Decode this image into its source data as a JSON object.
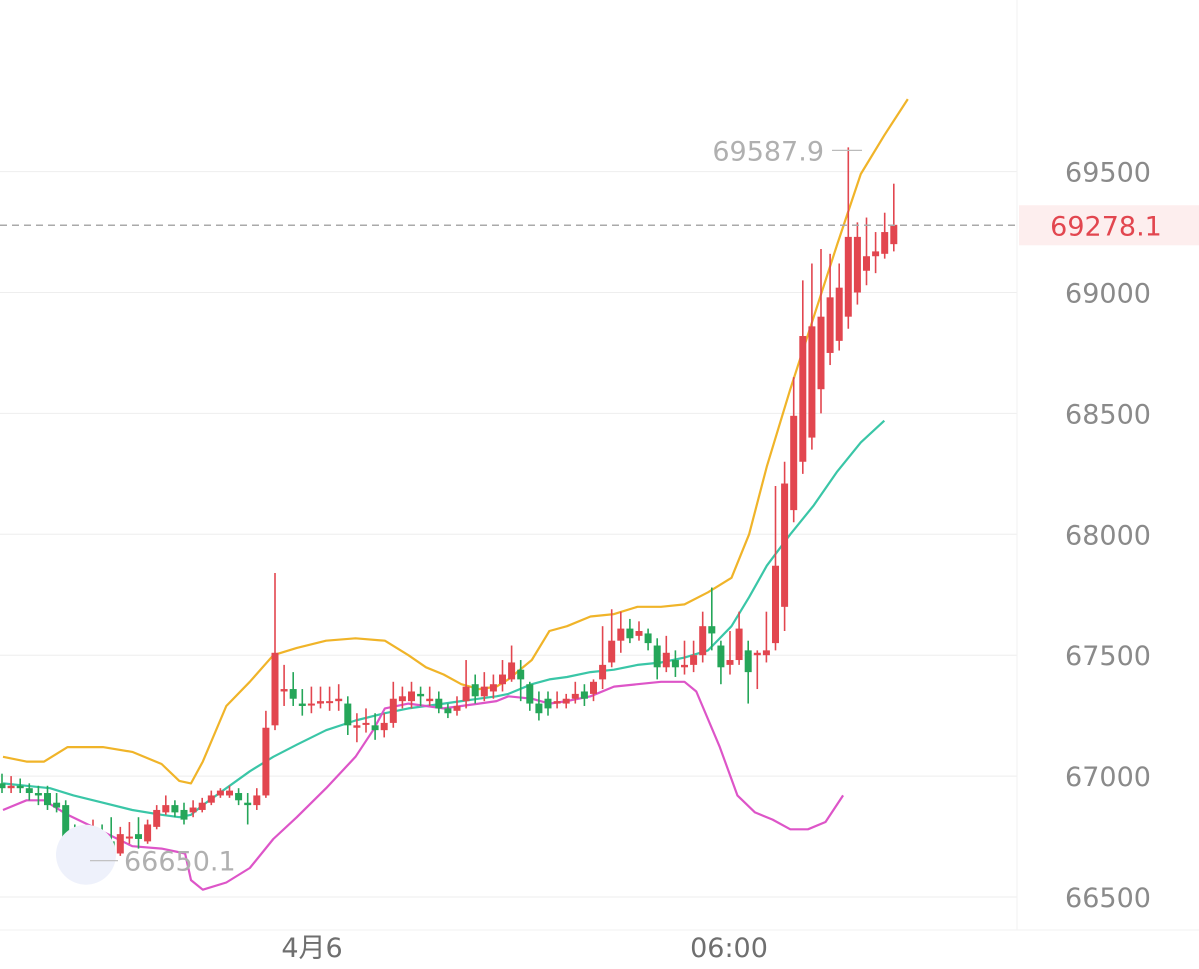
{
  "chart_data": {
    "type": "candlestick",
    "y_axis": {
      "position": "right",
      "ylim": [
        66400,
        69950
      ],
      "ticks": [
        66500,
        67000,
        67500,
        68000,
        68500,
        69000,
        69500
      ]
    },
    "x_axis": {
      "labels": [
        {
          "text": "4月6",
          "index": 15
        },
        {
          "text": "06:00",
          "index": 43
        }
      ]
    },
    "current_price": {
      "value": 69278.1,
      "label": "69278.1"
    },
    "annotations": [
      {
        "name": "high",
        "text": "69587.9",
        "value": 69587.9,
        "index": 51
      },
      {
        "name": "low",
        "text": "66650.1",
        "value": 66650.1,
        "index": 4
      }
    ],
    "colors": {
      "up": "#e2464f",
      "down": "#25a659",
      "bb_upper": "#f0b429",
      "bb_middle": "#3ac6a7",
      "bb_lower": "#dd55c8",
      "price_line": "#aaaaaa",
      "grid": "#eeeeee"
    },
    "candles": [
      [
        66970,
        66950,
        67010,
        66930
      ],
      [
        66950,
        66960,
        67000,
        66930
      ],
      [
        66960,
        66950,
        66990,
        66930
      ],
      [
        66950,
        66930,
        66970,
        66900
      ],
      [
        66930,
        66920,
        66960,
        66880
      ],
      [
        66930,
        66880,
        66960,
        66860
      ],
      [
        66890,
        66870,
        66930,
        66850
      ],
      [
        66880,
        66720,
        66900,
        66660
      ],
      [
        66730,
        66690,
        66800,
        66650
      ],
      [
        66700,
        66760,
        66790,
        66680
      ],
      [
        66760,
        66770,
        66820,
        66700
      ],
      [
        66760,
        66740,
        66800,
        66700
      ],
      [
        66730,
        66690,
        66830,
        66680
      ],
      [
        66680,
        66760,
        66790,
        66670
      ],
      [
        66750,
        66750,
        66810,
        66720
      ],
      [
        66760,
        66740,
        66830,
        66700
      ],
      [
        66730,
        66800,
        66820,
        66720
      ],
      [
        66790,
        66860,
        66880,
        66780
      ],
      [
        66850,
        66880,
        66920,
        66840
      ],
      [
        66880,
        66850,
        66900,
        66830
      ],
      [
        66860,
        66820,
        66890,
        66800
      ],
      [
        66850,
        66870,
        66900,
        66830
      ],
      [
        66860,
        66890,
        66910,
        66850
      ],
      [
        66890,
        66920,
        66940,
        66880
      ],
      [
        66920,
        66940,
        66950,
        66910
      ],
      [
        66920,
        66940,
        66960,
        66910
      ],
      [
        66930,
        66900,
        66950,
        66880
      ],
      [
        66890,
        66880,
        66930,
        66800
      ],
      [
        66880,
        66920,
        66950,
        66860
      ],
      [
        66920,
        67200,
        67270,
        66910
      ],
      [
        67210,
        67510,
        67840,
        67190
      ],
      [
        67350,
        67360,
        67460,
        67290
      ],
      [
        67360,
        67320,
        67430,
        67290
      ],
      [
        67300,
        67290,
        67360,
        67250
      ],
      [
        67300,
        67300,
        67370,
        67260
      ],
      [
        67300,
        67310,
        67370,
        67280
      ],
      [
        67310,
        67310,
        67370,
        67270
      ],
      [
        67310,
        67320,
        67380,
        67270
      ],
      [
        67300,
        67210,
        67330,
        67170
      ],
      [
        67200,
        67210,
        67260,
        67140
      ],
      [
        67220,
        67220,
        67280,
        67180
      ],
      [
        67210,
        67190,
        67260,
        67150
      ],
      [
        67190,
        67220,
        67260,
        67160
      ],
      [
        67220,
        67320,
        67390,
        67200
      ],
      [
        67310,
        67330,
        67370,
        67280
      ],
      [
        67310,
        67350,
        67390,
        67280
      ],
      [
        67340,
        67330,
        67370,
        67290
      ],
      [
        67310,
        67320,
        67370,
        67290
      ],
      [
        67320,
        67280,
        67350,
        67260
      ],
      [
        67280,
        67260,
        67300,
        67240
      ],
      [
        67270,
        67290,
        67330,
        67250
      ],
      [
        67310,
        67370,
        67480,
        67280
      ],
      [
        67380,
        67330,
        67420,
        67300
      ],
      [
        67330,
        67370,
        67430,
        67310
      ],
      [
        67350,
        67380,
        67420,
        67320
      ],
      [
        67380,
        67420,
        67480,
        67350
      ],
      [
        67400,
        67470,
        67540,
        67390
      ],
      [
        67440,
        67400,
        67480,
        67310
      ],
      [
        67380,
        67300,
        67390,
        67270
      ],
      [
        67300,
        67260,
        67350,
        67230
      ],
      [
        67320,
        67280,
        67350,
        67250
      ],
      [
        67300,
        67310,
        67350,
        67280
      ],
      [
        67300,
        67320,
        67340,
        67280
      ],
      [
        67320,
        67340,
        67390,
        67300
      ],
      [
        67350,
        67320,
        67380,
        67290
      ],
      [
        67340,
        67390,
        67400,
        67310
      ],
      [
        67400,
        67460,
        67620,
        67360
      ],
      [
        67470,
        67560,
        67690,
        67450
      ],
      [
        67560,
        67610,
        67680,
        67510
      ],
      [
        67610,
        67570,
        67650,
        67550
      ],
      [
        67580,
        67600,
        67640,
        67560
      ],
      [
        67590,
        67550,
        67610,
        67520
      ],
      [
        67540,
        67450,
        67570,
        67400
      ],
      [
        67450,
        67510,
        67580,
        67430
      ],
      [
        67480,
        67450,
        67520,
        67410
      ],
      [
        67450,
        67460,
        67560,
        67420
      ],
      [
        67460,
        67500,
        67560,
        67430
      ],
      [
        67500,
        67620,
        67680,
        67470
      ],
      [
        67620,
        67590,
        67780,
        67520
      ],
      [
        67540,
        67450,
        67560,
        67380
      ],
      [
        67460,
        67480,
        67600,
        67420
      ],
      [
        67480,
        67610,
        67680,
        67460
      ],
      [
        67520,
        67430,
        67560,
        67300
      ],
      [
        67500,
        67510,
        67520,
        67360
      ],
      [
        67500,
        67520,
        67680,
        67470
      ],
      [
        67550,
        67870,
        68200,
        67520
      ],
      [
        67700,
        68210,
        68300,
        67600
      ],
      [
        68100,
        68490,
        68650,
        68050
      ],
      [
        68300,
        68820,
        69050,
        68250
      ],
      [
        68400,
        68860,
        69120,
        68350
      ],
      [
        68600,
        68900,
        69180,
        68500
      ],
      [
        68750,
        68980,
        69160,
        68700
      ],
      [
        68800,
        69020,
        69120,
        68760
      ],
      [
        68900,
        69230,
        69600,
        68850
      ],
      [
        69000,
        69230,
        69290,
        68950
      ],
      [
        69090,
        69150,
        69310,
        69030
      ],
      [
        69150,
        69170,
        69250,
        69080
      ],
      [
        69160,
        69250,
        69330,
        69140
      ],
      [
        69200,
        69280,
        69450,
        69170
      ]
    ],
    "bb_upper": [
      [
        0,
        67080
      ],
      [
        4,
        67060
      ],
      [
        7,
        67060
      ],
      [
        11,
        67120
      ],
      [
        17,
        67120
      ],
      [
        22,
        67100
      ],
      [
        27,
        67050
      ],
      [
        30,
        66980
      ],
      [
        32,
        66970
      ],
      [
        34,
        67060
      ],
      [
        38,
        67290
      ],
      [
        42,
        67390
      ],
      [
        46,
        67500
      ],
      [
        50,
        67530
      ],
      [
        55,
        67560
      ],
      [
        60,
        67570
      ],
      [
        65,
        67560
      ],
      [
        69,
        67500
      ],
      [
        72,
        67450
      ],
      [
        75,
        67420
      ],
      [
        78,
        67380
      ],
      [
        81,
        67360
      ],
      [
        84,
        67370
      ],
      [
        86,
        67400
      ],
      [
        90,
        67480
      ],
      [
        93,
        67600
      ],
      [
        96,
        67620
      ],
      [
        100,
        67660
      ],
      [
        104,
        67670
      ],
      [
        108,
        67700
      ],
      [
        112,
        67700
      ],
      [
        116,
        67710
      ],
      [
        120,
        67760
      ],
      [
        124,
        67820
      ],
      [
        127,
        68000
      ],
      [
        130,
        68280
      ],
      [
        134,
        68600
      ],
      [
        138,
        68900
      ],
      [
        142,
        69200
      ],
      [
        146,
        69490
      ],
      [
        150,
        69650
      ],
      [
        154,
        69800
      ]
    ],
    "bb_middle": [
      [
        0,
        66970
      ],
      [
        4,
        66960
      ],
      [
        8,
        66950
      ],
      [
        12,
        66920
      ],
      [
        17,
        66890
      ],
      [
        22,
        66860
      ],
      [
        27,
        66840
      ],
      [
        30,
        66830
      ],
      [
        32,
        66840
      ],
      [
        34,
        66880
      ],
      [
        38,
        66950
      ],
      [
        42,
        67020
      ],
      [
        46,
        67080
      ],
      [
        50,
        67130
      ],
      [
        55,
        67190
      ],
      [
        60,
        67230
      ],
      [
        65,
        67260
      ],
      [
        69,
        67280
      ],
      [
        72,
        67290
      ],
      [
        75,
        67300
      ],
      [
        78,
        67310
      ],
      [
        81,
        67320
      ],
      [
        84,
        67330
      ],
      [
        86,
        67340
      ],
      [
        90,
        67380
      ],
      [
        93,
        67400
      ],
      [
        96,
        67410
      ],
      [
        100,
        67430
      ],
      [
        104,
        67440
      ],
      [
        108,
        67460
      ],
      [
        112,
        67470
      ],
      [
        116,
        67490
      ],
      [
        120,
        67520
      ],
      [
        124,
        67620
      ],
      [
        127,
        67740
      ],
      [
        130,
        67870
      ],
      [
        134,
        68000
      ],
      [
        138,
        68120
      ],
      [
        142,
        68260
      ],
      [
        146,
        68380
      ],
      [
        150,
        68470
      ]
    ],
    "bb_lower": [
      [
        0,
        66860
      ],
      [
        4,
        66900
      ],
      [
        7,
        66900
      ],
      [
        11,
        66840
      ],
      [
        17,
        66770
      ],
      [
        22,
        66710
      ],
      [
        27,
        66700
      ],
      [
        31,
        66680
      ],
      [
        32,
        66570
      ],
      [
        34,
        66530
      ],
      [
        38,
        66560
      ],
      [
        42,
        66620
      ],
      [
        46,
        66740
      ],
      [
        50,
        66830
      ],
      [
        55,
        66950
      ],
      [
        60,
        67080
      ],
      [
        63,
        67190
      ],
      [
        65,
        67280
      ],
      [
        69,
        67300
      ],
      [
        72,
        67290
      ],
      [
        75,
        67280
      ],
      [
        78,
        67290
      ],
      [
        81,
        67300
      ],
      [
        84,
        67310
      ],
      [
        86,
        67330
      ],
      [
        90,
        67320
      ],
      [
        93,
        67300
      ],
      [
        96,
        67310
      ],
      [
        100,
        67330
      ],
      [
        104,
        67370
      ],
      [
        108,
        67380
      ],
      [
        112,
        67390
      ],
      [
        116,
        67390
      ],
      [
        118,
        67350
      ],
      [
        122,
        67120
      ],
      [
        125,
        66920
      ],
      [
        128,
        66850
      ],
      [
        131,
        66820
      ],
      [
        134,
        66780
      ],
      [
        137,
        66780
      ],
      [
        140,
        66810
      ],
      [
        143,
        66920
      ]
    ]
  }
}
